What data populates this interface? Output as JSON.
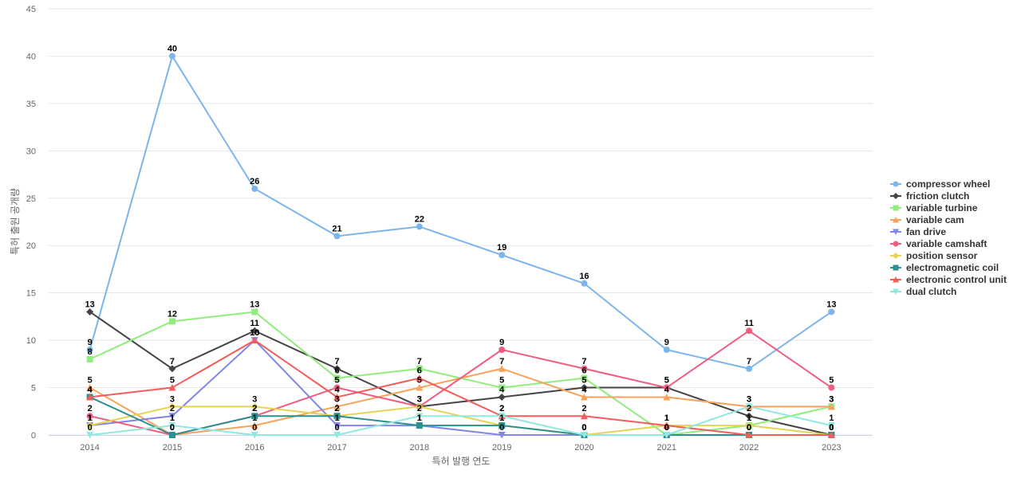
{
  "chart_data": {
    "type": "line",
    "title": "",
    "xlabel": "특허 발행 연도",
    "ylabel": "특허 출원 공개량",
    "ylim": [
      0,
      45
    ],
    "yticks": [
      0,
      5,
      10,
      15,
      20,
      25,
      30,
      35,
      40,
      45
    ],
    "grid": true,
    "legend_position": "right",
    "categories": [
      "2014",
      "2015",
      "2016",
      "2017",
      "2018",
      "2019",
      "2020",
      "2021",
      "2022",
      "2023"
    ],
    "series": [
      {
        "name": "compressor wheel",
        "color": "#7cb5ec",
        "marker": "circle",
        "values": [
          9,
          40,
          26,
          21,
          22,
          19,
          16,
          9,
          7,
          13
        ]
      },
      {
        "name": "friction clutch",
        "color": "#434348",
        "marker": "diamond",
        "values": [
          13,
          7,
          11,
          7,
          3,
          4,
          5,
          5,
          2,
          0
        ]
      },
      {
        "name": "variable turbine",
        "color": "#90ed7d",
        "marker": "square",
        "values": [
          8,
          12,
          13,
          6,
          7,
          5,
          6,
          0,
          1,
          3
        ]
      },
      {
        "name": "variable cam",
        "color": "#f7a35c",
        "marker": "triangle",
        "values": [
          5,
          0,
          1,
          3,
          5,
          7,
          4,
          4,
          3,
          3
        ]
      },
      {
        "name": "fan drive",
        "color": "#8085e9",
        "marker": "triangle-down",
        "values": [
          1,
          2,
          10,
          1,
          1,
          0,
          0,
          0,
          0,
          0
        ]
      },
      {
        "name": "variable camshaft",
        "color": "#f15c80",
        "marker": "circle",
        "values": [
          2,
          0,
          2,
          5,
          3,
          9,
          7,
          5,
          11,
          5
        ]
      },
      {
        "name": "position sensor",
        "color": "#e4d354",
        "marker": "diamond",
        "values": [
          1,
          3,
          3,
          2,
          3,
          1,
          0,
          1,
          1,
          0
        ]
      },
      {
        "name": "electromagnetic coil",
        "color": "#2b908f",
        "marker": "square",
        "values": [
          4,
          0,
          2,
          2,
          1,
          1,
          0,
          0,
          0,
          0
        ]
      },
      {
        "name": "electronic control unit",
        "color": "#f45b5b",
        "marker": "triangle",
        "values": [
          4,
          5,
          10,
          4,
          6,
          2,
          2,
          1,
          0,
          0
        ]
      },
      {
        "name": "dual clutch",
        "color": "#91e8e1",
        "marker": "triangle-down",
        "values": [
          0,
          1,
          0,
          0,
          2,
          2,
          0,
          0,
          3,
          1
        ]
      }
    ]
  }
}
